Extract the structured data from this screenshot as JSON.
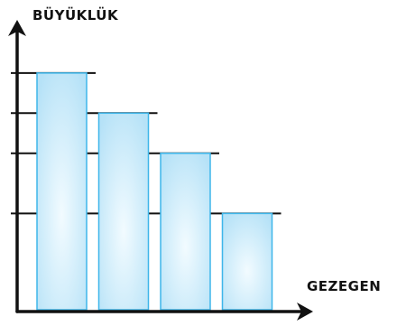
{
  "chart_data": {
    "type": "bar",
    "title": "",
    "xlabel": "GEZEGEN",
    "ylabel": "BÜYÜKLÜK",
    "categories": [
      "",
      "",
      "",
      ""
    ],
    "values": [
      5.9,
      4.9,
      3.9,
      2.4
    ],
    "ylim": [
      0,
      7
    ],
    "grid": true,
    "colors": {
      "bar_fill_center": "#f2fbff",
      "bar_fill_edge": "#b6e2f7",
      "bar_stroke": "#3eb6ea",
      "axis": "#111111",
      "gridline": "#111111"
    }
  }
}
